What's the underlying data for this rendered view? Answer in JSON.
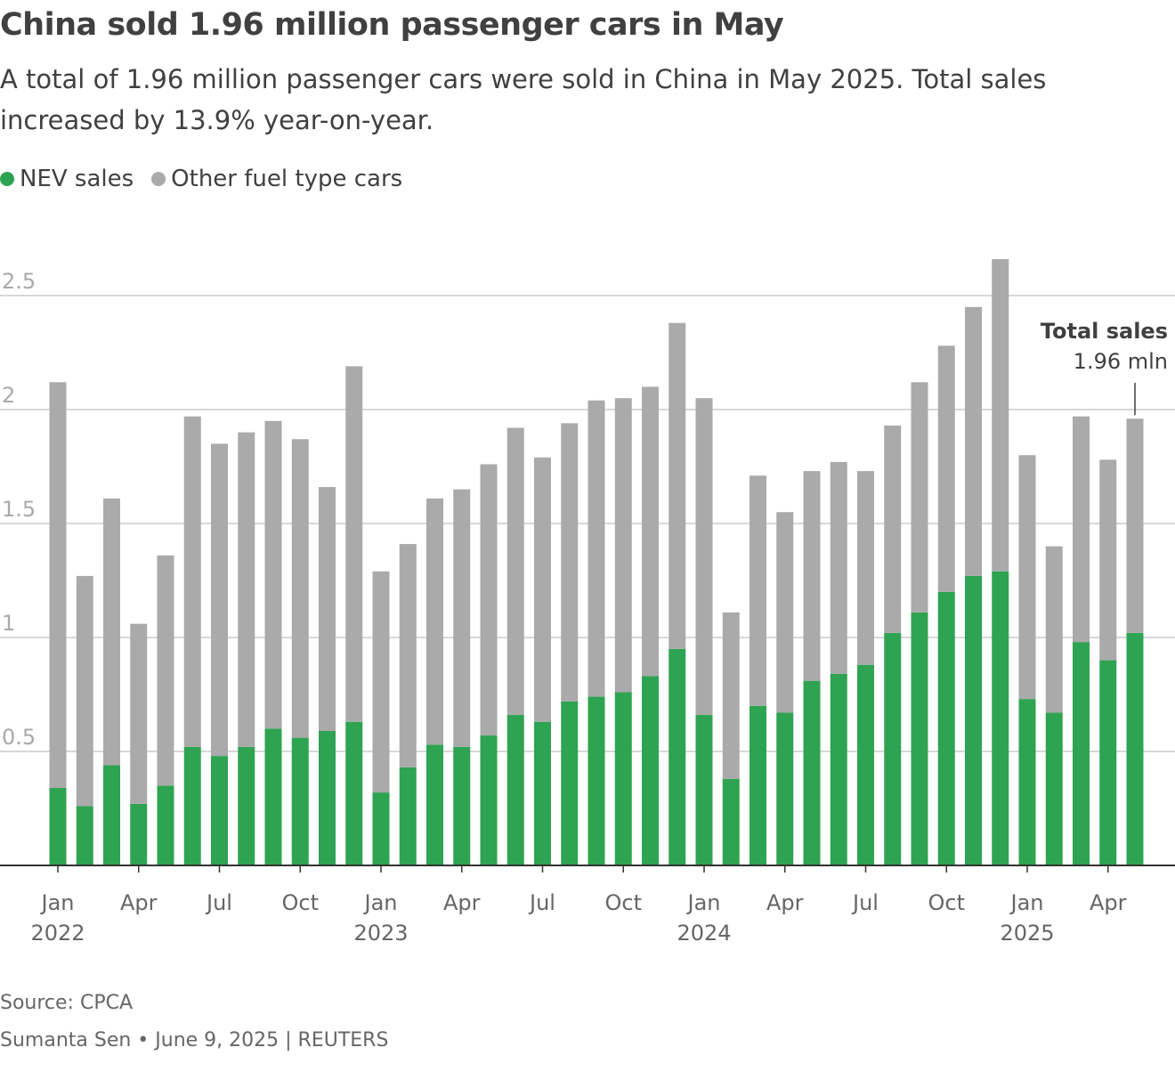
{
  "chart_data": {
    "type": "bar",
    "stacked": true,
    "title": "China sold 1.96 million passenger cars in May",
    "subtitle": "A total of 1.96 million passenger cars were sold in China in May 2025. Total sales increased by 13.9% year-on-year.",
    "categories": [
      "Jan 2022",
      "Feb 2022",
      "Mar 2022",
      "Apr 2022",
      "May 2022",
      "Jun 2022",
      "Jul 2022",
      "Aug 2022",
      "Sep 2022",
      "Oct 2022",
      "Nov 2022",
      "Dec 2022",
      "Jan 2023",
      "Feb 2023",
      "Mar 2023",
      "Apr 2023",
      "May 2023",
      "Jun 2023",
      "Jul 2023",
      "Aug 2023",
      "Sep 2023",
      "Oct 2023",
      "Nov 2023",
      "Dec 2023",
      "Jan 2024",
      "Feb 2024",
      "Mar 2024",
      "Apr 2024",
      "May 2024",
      "Jun 2024",
      "Jul 2024",
      "Aug 2024",
      "Sep 2024",
      "Oct 2024",
      "Nov 2024",
      "Dec 2024",
      "Jan 2025",
      "Feb 2025",
      "Mar 2025",
      "Apr 2025",
      "May 2025"
    ],
    "series": [
      {
        "name": "NEV sales",
        "color": "#2ea352",
        "values": [
          0.34,
          0.26,
          0.44,
          0.27,
          0.35,
          0.52,
          0.48,
          0.52,
          0.6,
          0.56,
          0.59,
          0.63,
          0.32,
          0.43,
          0.53,
          0.52,
          0.57,
          0.66,
          0.63,
          0.72,
          0.74,
          0.76,
          0.83,
          0.95,
          0.66,
          0.38,
          0.7,
          0.67,
          0.81,
          0.84,
          0.88,
          1.02,
          1.11,
          1.2,
          1.27,
          1.29,
          0.73,
          0.67,
          0.98,
          0.9,
          1.02
        ]
      },
      {
        "name": "Other fuel type cars",
        "color": "#aaaaaa",
        "values": [
          1.78,
          1.01,
          1.17,
          0.79,
          1.01,
          1.45,
          1.37,
          1.38,
          1.35,
          1.31,
          1.07,
          1.56,
          0.97,
          0.98,
          1.08,
          1.13,
          1.19,
          1.26,
          1.16,
          1.22,
          1.3,
          1.29,
          1.27,
          1.43,
          1.39,
          0.73,
          1.01,
          0.88,
          0.92,
          0.93,
          0.85,
          0.91,
          1.01,
          1.08,
          1.18,
          1.37,
          1.07,
          0.73,
          0.99,
          0.88,
          0.94
        ]
      }
    ],
    "ylim": [
      0,
      2.6
    ],
    "yticks": [
      "0.5",
      "1",
      "1.5",
      "2",
      "2.5"
    ],
    "ytick_values": [
      0.5,
      1,
      1.5,
      2,
      2.5
    ],
    "xticks": [
      {
        "index": 0,
        "month": "Jan",
        "year": "2022"
      },
      {
        "index": 3,
        "month": "Apr"
      },
      {
        "index": 6,
        "month": "Jul"
      },
      {
        "index": 9,
        "month": "Oct"
      },
      {
        "index": 12,
        "month": "Jan",
        "year": "2023"
      },
      {
        "index": 15,
        "month": "Apr"
      },
      {
        "index": 18,
        "month": "Jul"
      },
      {
        "index": 21,
        "month": "Oct"
      },
      {
        "index": 24,
        "month": "Jan",
        "year": "2024"
      },
      {
        "index": 27,
        "month": "Apr"
      },
      {
        "index": 30,
        "month": "Jul"
      },
      {
        "index": 33,
        "month": "Oct"
      },
      {
        "index": 36,
        "month": "Jan",
        "year": "2025"
      },
      {
        "index": 39,
        "month": "Apr"
      }
    ],
    "grid": true,
    "legend_placement": "top-left",
    "annotation": {
      "index": 40,
      "title": "Total sales",
      "value": "1.96 mln"
    }
  },
  "footer": {
    "source": "Source: CPCA",
    "credit": "Sumanta Sen • June 9, 2025 | REUTERS"
  }
}
